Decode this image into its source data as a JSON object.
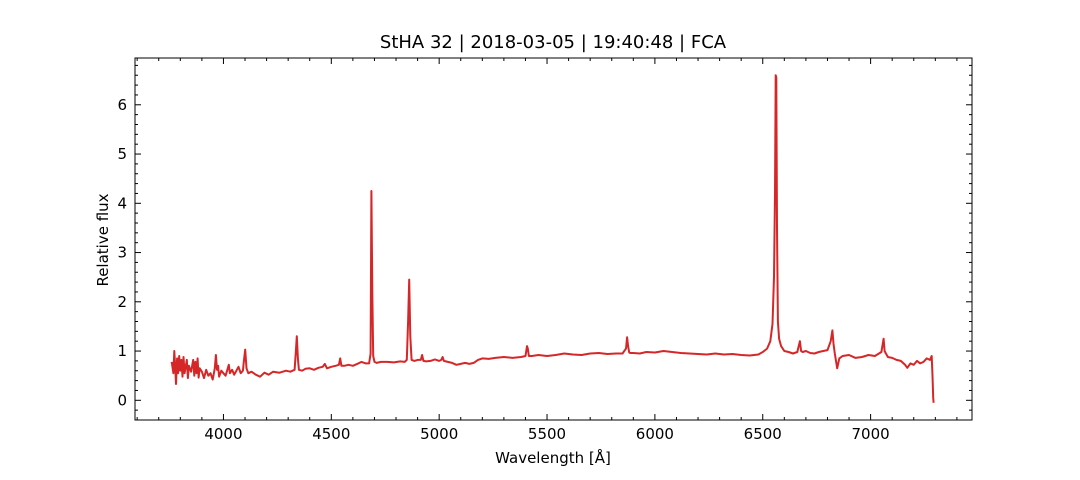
{
  "chart_data": {
    "type": "line",
    "title": "StHA 32 | 2018-03-05 | 19:40:48 | FCA",
    "xlabel": "Wavelength [Å]",
    "ylabel": "Relative flux",
    "xlim": [
      3590,
      7470
    ],
    "ylim": [
      -0.4,
      6.95
    ],
    "xticks": [
      4000,
      4500,
      5000,
      5500,
      6000,
      6500,
      7000
    ],
    "yticks": [
      0,
      1,
      2,
      3,
      4,
      5,
      6
    ],
    "grid": false,
    "legend": "none",
    "series": [
      {
        "color": "#d62728",
        "x": [
          3760,
          3768,
          3772,
          3776,
          3780,
          3785,
          3790,
          3795,
          3800,
          3805,
          3810,
          3815,
          3820,
          3830,
          3835,
          3840,
          3850,
          3860,
          3865,
          3870,
          3875,
          3880,
          3885,
          3890,
          3900,
          3910,
          3920,
          3930,
          3940,
          3950,
          3960,
          3965,
          3970,
          3975,
          3980,
          3990,
          4000,
          4010,
          4020,
          4025,
          4030,
          4040,
          4050,
          4060,
          4070,
          4080,
          4090,
          4095,
          4101,
          4107,
          4115,
          4130,
          4150,
          4170,
          4190,
          4210,
          4230,
          4260,
          4290,
          4310,
          4330,
          4336,
          4340,
          4345,
          4350,
          4365,
          4380,
          4400,
          4420,
          4440,
          4460,
          4470,
          4480,
          4500,
          4520,
          4535,
          4541,
          4547,
          4560,
          4580,
          4600,
          4620,
          4640,
          4660,
          4675,
          4682,
          4686,
          4690,
          4694,
          4700,
          4710,
          4730,
          4760,
          4790,
          4820,
          4840,
          4850,
          4856,
          4861,
          4866,
          4872,
          4885,
          4900,
          4915,
          4921,
          4927,
          4940,
          4960,
          4980,
          5000,
          5010,
          5016,
          5022,
          5040,
          5060,
          5080,
          5100,
          5120,
          5140,
          5160,
          5180,
          5200,
          5230,
          5260,
          5300,
          5340,
          5380,
          5400,
          5407,
          5411,
          5416,
          5430,
          5460,
          5500,
          5540,
          5580,
          5620,
          5660,
          5700,
          5740,
          5780,
          5820,
          5850,
          5866,
          5871,
          5876,
          5881,
          5886,
          5900,
          5930,
          5960,
          6000,
          6040,
          6080,
          6120,
          6160,
          6200,
          6240,
          6280,
          6320,
          6360,
          6400,
          6440,
          6480,
          6500,
          6520,
          6535,
          6545,
          6552,
          6557,
          6560,
          6563,
          6566,
          6570,
          6576,
          6585,
          6600,
          6620,
          6640,
          6660,
          6672,
          6678,
          6685,
          6700,
          6720,
          6740,
          6760,
          6780,
          6800,
          6815,
          6823,
          6828,
          6834,
          6845,
          6855,
          6870,
          6900,
          6930,
          6960,
          6990,
          7020,
          7050,
          7060,
          7065,
          7071,
          7080,
          7100,
          7120,
          7140,
          7160,
          7170,
          7185,
          7200,
          7215,
          7230,
          7245,
          7260,
          7275,
          7283,
          7287,
          7290,
          7292
        ],
        "y": [
          0.78,
          0.55,
          1.0,
          0.72,
          0.33,
          0.85,
          0.55,
          0.9,
          0.6,
          0.82,
          0.48,
          0.88,
          0.55,
          0.82,
          0.45,
          0.7,
          0.58,
          0.82,
          0.5,
          0.78,
          0.55,
          0.85,
          0.46,
          0.65,
          0.58,
          0.45,
          0.62,
          0.5,
          0.55,
          0.42,
          0.65,
          0.92,
          0.62,
          0.7,
          0.48,
          0.6,
          0.55,
          0.5,
          0.65,
          0.72,
          0.55,
          0.62,
          0.52,
          0.6,
          0.68,
          0.55,
          0.6,
          0.8,
          1.03,
          0.65,
          0.55,
          0.58,
          0.52,
          0.48,
          0.56,
          0.52,
          0.58,
          0.56,
          0.6,
          0.58,
          0.62,
          1.0,
          1.3,
          0.85,
          0.62,
          0.6,
          0.64,
          0.65,
          0.62,
          0.66,
          0.68,
          0.74,
          0.65,
          0.68,
          0.7,
          0.72,
          0.85,
          0.7,
          0.7,
          0.72,
          0.7,
          0.74,
          0.78,
          0.75,
          0.75,
          0.95,
          4.25,
          2.2,
          0.9,
          0.78,
          0.76,
          0.78,
          0.78,
          0.77,
          0.79,
          0.78,
          0.82,
          1.6,
          2.45,
          1.3,
          0.82,
          0.8,
          0.82,
          0.82,
          0.92,
          0.8,
          0.79,
          0.8,
          0.83,
          0.8,
          0.82,
          0.88,
          0.8,
          0.78,
          0.76,
          0.72,
          0.74,
          0.76,
          0.74,
          0.76,
          0.82,
          0.85,
          0.84,
          0.86,
          0.88,
          0.86,
          0.88,
          0.9,
          1.1,
          1.05,
          0.9,
          0.9,
          0.92,
          0.9,
          0.92,
          0.95,
          0.93,
          0.92,
          0.95,
          0.96,
          0.94,
          0.95,
          0.95,
          1.05,
          1.28,
          1.1,
          0.97,
          0.96,
          0.96,
          0.95,
          0.98,
          0.97,
          1.0,
          0.98,
          0.96,
          0.95,
          0.94,
          0.93,
          0.95,
          0.93,
          0.94,
          0.92,
          0.91,
          0.93,
          0.98,
          1.05,
          1.2,
          1.55,
          2.5,
          4.2,
          6.6,
          6.55,
          3.5,
          1.6,
          1.25,
          1.1,
          1.0,
          0.98,
          0.95,
          0.98,
          1.2,
          1.0,
          0.98,
          1.0,
          0.96,
          0.95,
          0.98,
          1.0,
          1.02,
          1.2,
          1.42,
          1.15,
          0.95,
          0.65,
          0.85,
          0.9,
          0.92,
          0.86,
          0.88,
          0.92,
          0.9,
          0.98,
          1.25,
          1.0,
          0.95,
          0.88,
          0.86,
          0.82,
          0.8,
          0.72,
          0.66,
          0.75,
          0.72,
          0.8,
          0.75,
          0.78,
          0.85,
          0.82,
          0.9,
          0.5,
          0.05,
          -0.05
        ]
      }
    ]
  }
}
